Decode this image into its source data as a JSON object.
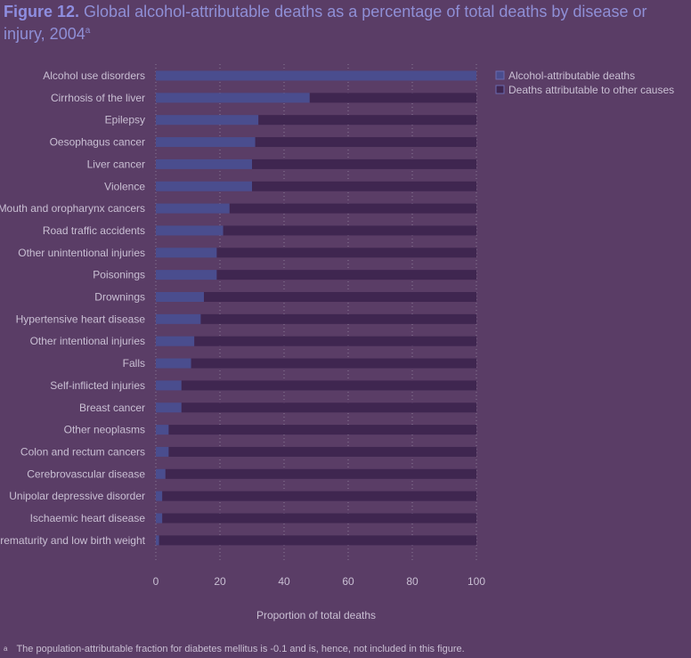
{
  "figure": {
    "label": "Figure 12.",
    "title": "Global alcohol-attributable deaths as a percentage of total deaths by disease or injury, 2004",
    "title_sup": "a"
  },
  "footnote": {
    "marker": "a",
    "text": "The population-attributable fraction for diabetes mellitus is -0.1 and is, hence, not included in this figure."
  },
  "colors": {
    "alcohol": "#4a4d8e",
    "other": "#3f2650",
    "grid": "#8a7a96",
    "text": "#c9bfd3"
  },
  "chart_data": {
    "type": "bar",
    "orientation": "horizontal",
    "stacked": true,
    "categories": [
      "Alcohol use disorders",
      "Cirrhosis of the liver",
      "Epilepsy",
      "Oesophagus cancer",
      "Liver cancer",
      "Violence",
      "Mouth and oropharynx cancers",
      "Road traffic accidents",
      "Other unintentional injuries",
      "Poisonings",
      "Drownings",
      "Hypertensive heart disease",
      "Other intentional injuries",
      "Falls",
      "Self-inflicted injuries",
      "Breast cancer",
      "Other neoplasms",
      "Colon and rectum cancers",
      "Cerebrovascular disease",
      "Unipolar depressive disorder",
      "Ischaemic heart disease",
      "Prematurity and low birth weight"
    ],
    "series": [
      {
        "name": "Alcohol-attributable deaths",
        "values": [
          100,
          48,
          32,
          31,
          30,
          30,
          23,
          21,
          19,
          19,
          15,
          14,
          12,
          11,
          8,
          8,
          4,
          4,
          3,
          2,
          2,
          1
        ]
      },
      {
        "name": "Deaths attributable to other causes",
        "values": [
          0,
          52,
          68,
          69,
          70,
          70,
          77,
          79,
          81,
          81,
          85,
          86,
          88,
          89,
          92,
          92,
          96,
          96,
          97,
          98,
          98,
          99
        ]
      }
    ],
    "xlabel": "Proportion of total deaths",
    "ylabel": "",
    "xlim": [
      0,
      100
    ],
    "xticks": [
      "0",
      "20",
      "40",
      "60",
      "80",
      "100"
    ],
    "grid": "vertical dotted",
    "legend": "top-right"
  }
}
